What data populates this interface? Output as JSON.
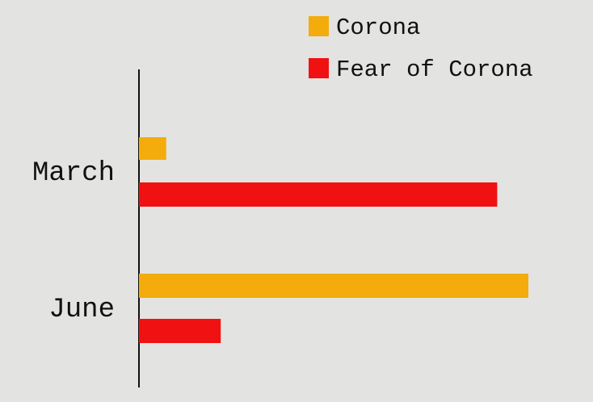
{
  "chart_data": {
    "type": "bar",
    "orientation": "horizontal",
    "title": "",
    "xlabel": "",
    "ylabel": "",
    "categories": [
      "March",
      "June"
    ],
    "series": [
      {
        "name": "Corona",
        "color": "#f3ac0c",
        "values": [
          7,
          100
        ]
      },
      {
        "name": "Fear of Corona",
        "color": "#f01212",
        "values": [
          92,
          21
        ]
      }
    ],
    "xlim": [
      0,
      100
    ],
    "grid": false,
    "legend": "top-right",
    "background": "#e3e3e1"
  }
}
